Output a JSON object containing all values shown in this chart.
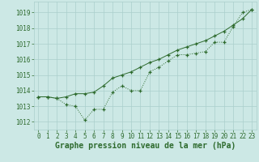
{
  "line1_x": [
    0,
    1,
    2,
    3,
    4,
    5,
    6,
    7,
    8,
    9,
    10,
    11,
    12,
    13,
    14,
    15,
    16,
    17,
    18,
    19,
    20,
    21,
    22,
    23
  ],
  "line1_y": [
    1013.6,
    1013.6,
    1013.5,
    1013.1,
    1013.0,
    1012.1,
    1012.8,
    1012.8,
    1013.9,
    1014.3,
    1014.0,
    1014.0,
    1015.2,
    1015.5,
    1015.9,
    1016.3,
    1016.3,
    1016.4,
    1016.5,
    1017.1,
    1017.1,
    1018.1,
    1019.0,
    1019.2
  ],
  "line2_x": [
    0,
    1,
    2,
    3,
    4,
    5,
    6,
    7,
    8,
    9,
    10,
    11,
    12,
    13,
    14,
    15,
    16,
    17,
    18,
    19,
    20,
    21,
    22,
    23
  ],
  "line2_y": [
    1013.6,
    1013.6,
    1013.5,
    1013.6,
    1013.8,
    1013.8,
    1013.9,
    1014.3,
    1014.8,
    1015.0,
    1015.2,
    1015.5,
    1015.8,
    1016.0,
    1016.3,
    1016.6,
    1016.8,
    1017.0,
    1017.2,
    1017.5,
    1017.8,
    1018.2,
    1018.6,
    1019.2
  ],
  "line_color": "#2d6a2d",
  "bg_color": "#cce8e5",
  "grid_color": "#aacfcc",
  "xlabel": "Graphe pression niveau de la mer (hPa)",
  "ylim": [
    1011.5,
    1019.7
  ],
  "xlim": [
    -0.5,
    23.5
  ],
  "yticks": [
    1012,
    1013,
    1014,
    1015,
    1016,
    1017,
    1018,
    1019
  ],
  "xticks": [
    0,
    1,
    2,
    3,
    4,
    5,
    6,
    7,
    8,
    9,
    10,
    11,
    12,
    13,
    14,
    15,
    16,
    17,
    18,
    19,
    20,
    21,
    22,
    23
  ],
  "tick_fontsize": 5.5,
  "xlabel_fontsize": 7.0,
  "marker": "+"
}
